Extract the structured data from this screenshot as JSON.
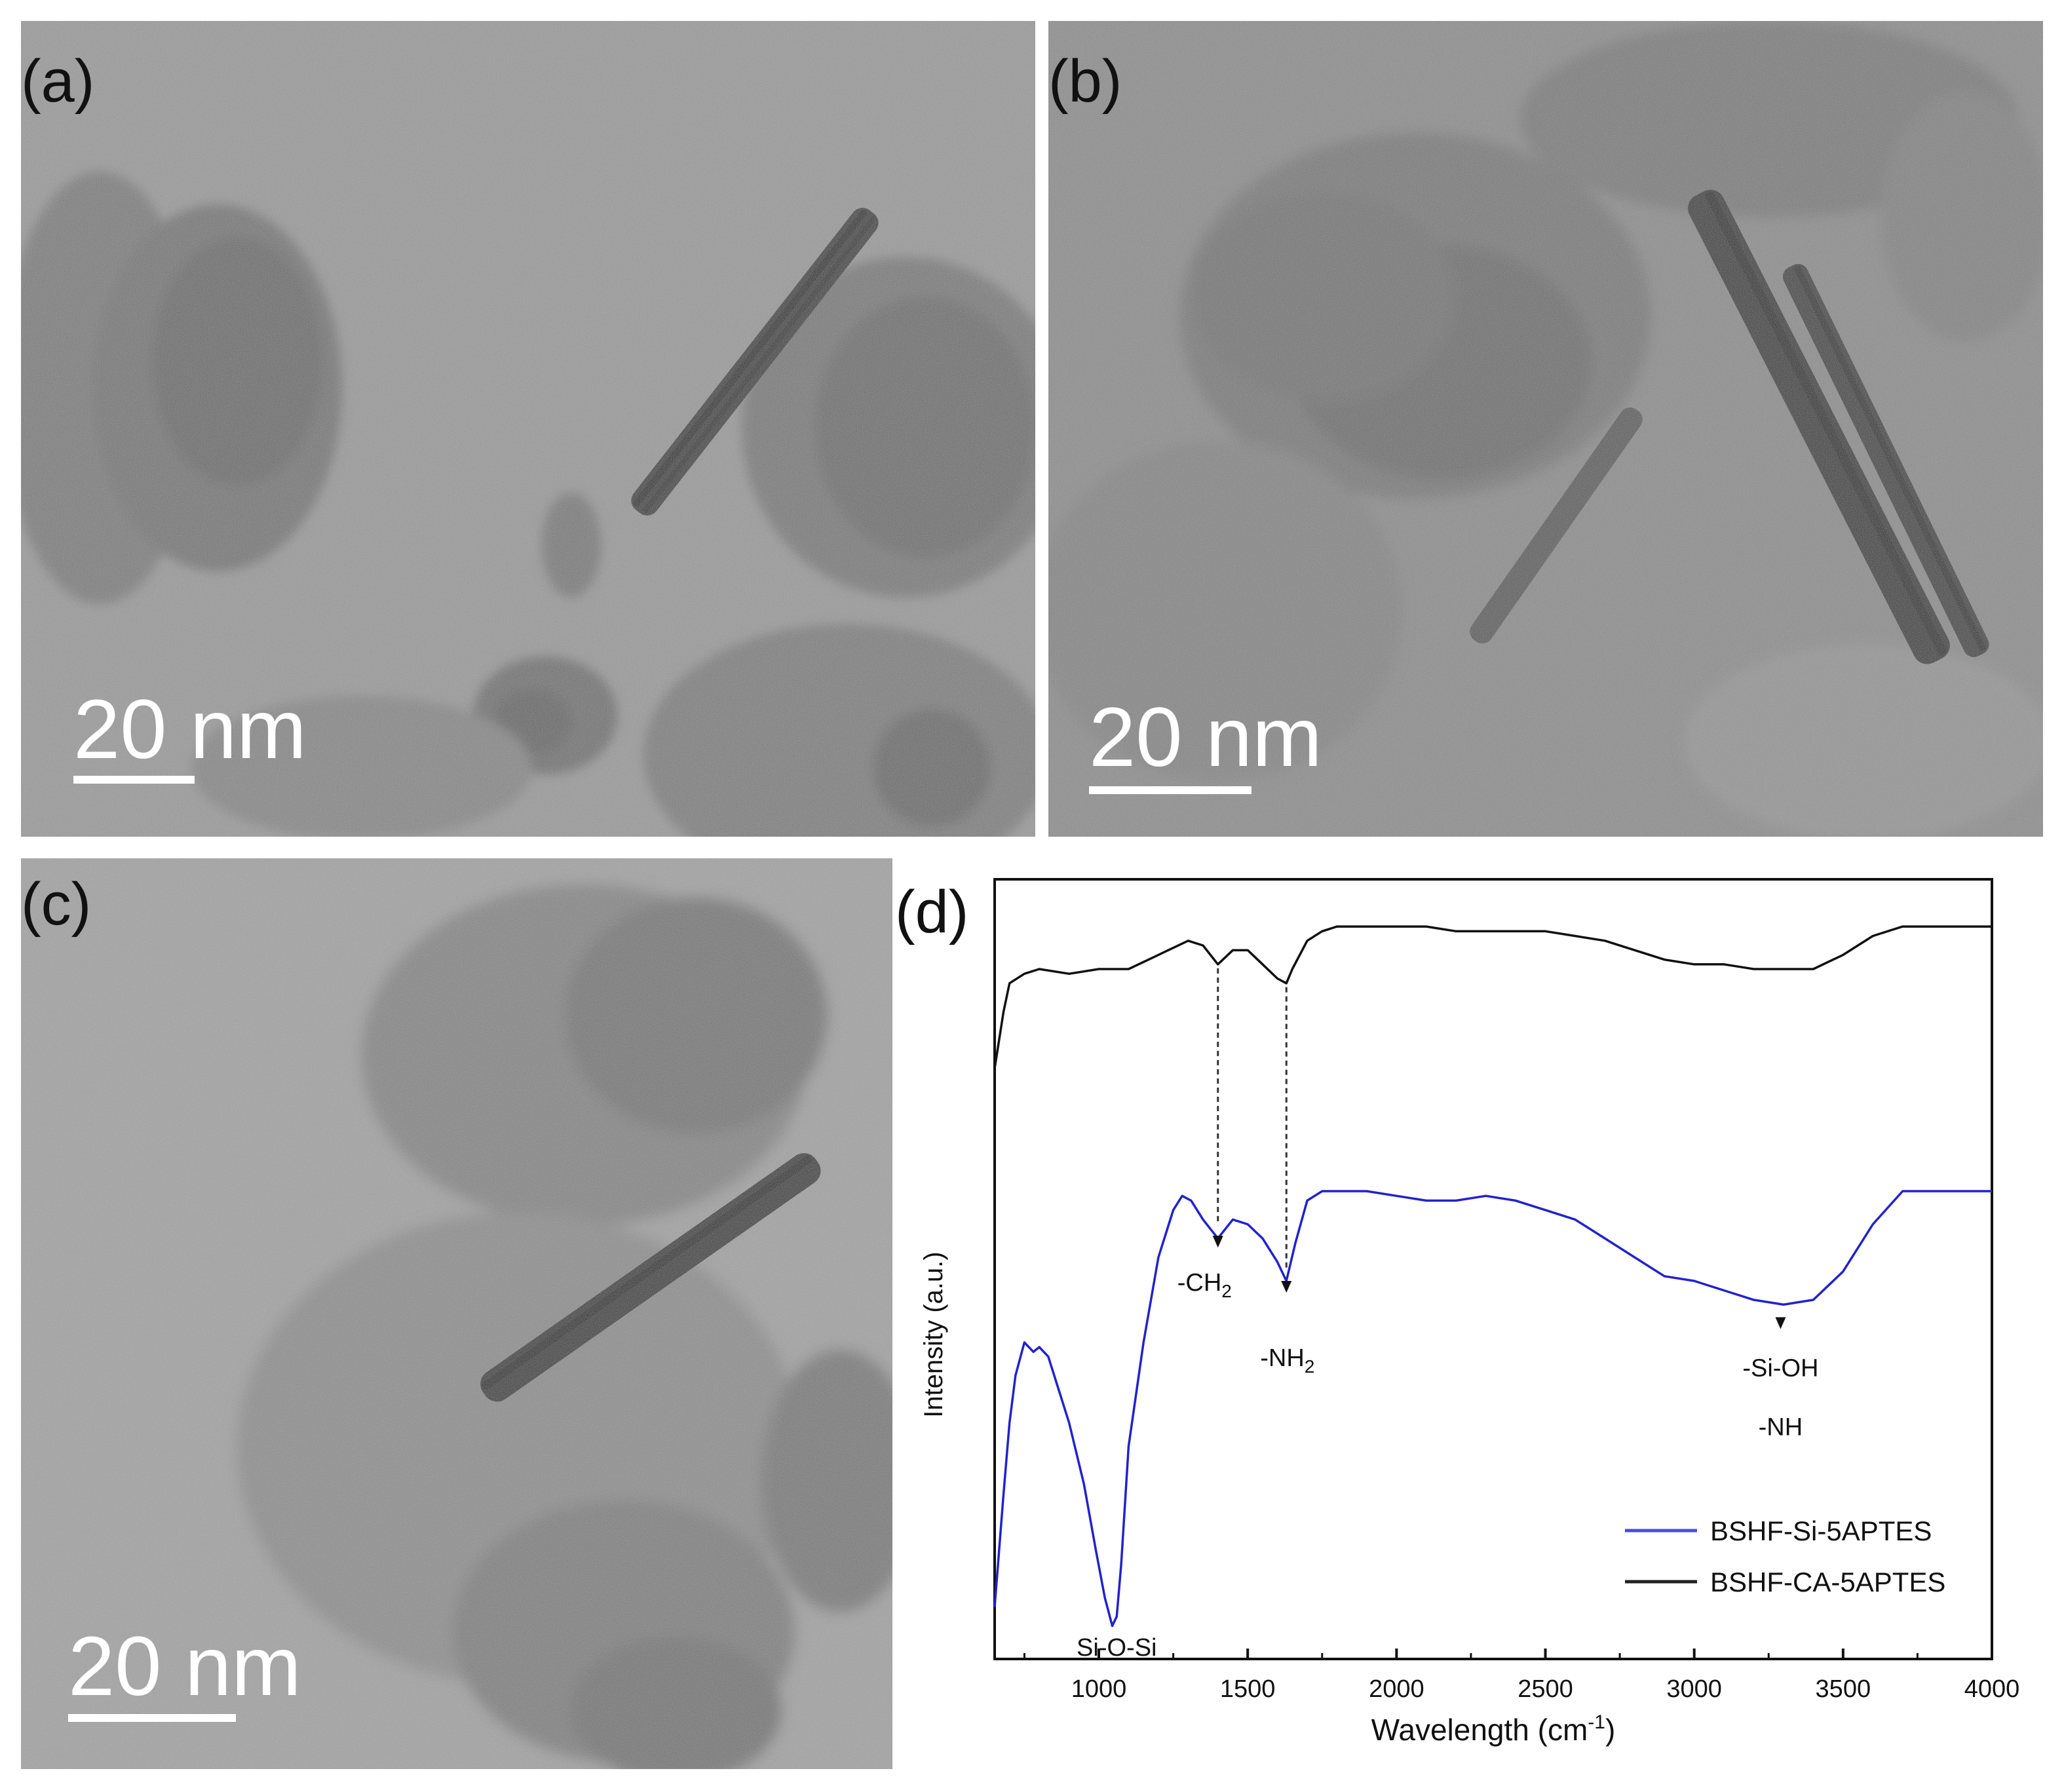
{
  "panels": {
    "a": {
      "label": "(a)",
      "scale": "20 nm"
    },
    "b": {
      "label": "(b)",
      "scale": "20 nm"
    },
    "c": {
      "label": "(c)",
      "scale": "20 nm"
    },
    "d": {
      "label": "(d)"
    }
  },
  "chart_data": {
    "type": "line",
    "xlabel": "Wavelength (cm⁻¹)",
    "ylabel": "Intensity (a.u.)",
    "xlim": [
      650,
      4000
    ],
    "xticks": [
      1000,
      1500,
      2000,
      2500,
      3000,
      3500,
      4000
    ],
    "yaxis_ticks": false,
    "legend_position": "bottom-right",
    "series": [
      {
        "name": "BSHF-Si-5APTES",
        "color": "#2222cc",
        "x": [
          650,
          680,
          700,
          720,
          750,
          780,
          800,
          830,
          850,
          900,
          950,
          990,
          1020,
          1045,
          1060,
          1075,
          1100,
          1150,
          1200,
          1250,
          1280,
          1310,
          1350,
          1400,
          1450,
          1500,
          1550,
          1600,
          1630,
          1660,
          1700,
          1750,
          1800,
          1900,
          2000,
          2100,
          2200,
          2300,
          2400,
          2500,
          2600,
          2700,
          2800,
          2900,
          3000,
          3100,
          3200,
          3300,
          3400,
          3500,
          3600,
          3700,
          3800,
          3900,
          4000
        ],
        "values": [
          6,
          30,
          45,
          55,
          62,
          60,
          61,
          59,
          55,
          45,
          32,
          18,
          8,
          2,
          4,
          15,
          40,
          62,
          80,
          90,
          93,
          92,
          88,
          84,
          88,
          87,
          84,
          79,
          75,
          83,
          92,
          94,
          94,
          94,
          93,
          92,
          92,
          93,
          92,
          90,
          88,
          84,
          80,
          76,
          75,
          73,
          71,
          70,
          71,
          77,
          87,
          94,
          94,
          94,
          94
        ]
      },
      {
        "name": "BSHF-CA-5APTES",
        "color": "#111111",
        "x": [
          650,
          680,
          700,
          750,
          800,
          900,
          1000,
          1100,
          1200,
          1300,
          1350,
          1400,
          1450,
          1500,
          1550,
          1600,
          1630,
          1650,
          1700,
          1750,
          1800,
          1900,
          2000,
          2100,
          2200,
          2300,
          2400,
          2500,
          2600,
          2700,
          2800,
          2900,
          3000,
          3100,
          3200,
          3300,
          3400,
          3500,
          3600,
          3700,
          3800,
          3900,
          4000
        ],
        "values": [
          120,
          132,
          138,
          140,
          141,
          140,
          141,
          141,
          144,
          147,
          146,
          142,
          145,
          145,
          142,
          139,
          138,
          141,
          147,
          149,
          150,
          150,
          150,
          150,
          149,
          149,
          149,
          149,
          148,
          147,
          145,
          143,
          142,
          142,
          141,
          141,
          141,
          144,
          148,
          150,
          150,
          150,
          150
        ]
      }
    ],
    "annotations": [
      "-CH2",
      "-NH2",
      "-Si-OH",
      "-NH",
      "Si-O-Si"
    ]
  },
  "annotation_display": {
    "ch2": "-CH",
    "ch2_sub": "2",
    "nh2": "-NH",
    "nh2_sub": "2",
    "sioh": "-Si-OH",
    "nh": "-NH",
    "siosi": "Si-O-Si"
  },
  "axis_display": {
    "xlabel_main": "Wavelength (cm",
    "xlabel_sup": "-1",
    "xlabel_end": ")",
    "ylabel": "Intensity (a.u.)"
  },
  "legend": [
    {
      "label": "BSHF-Si-5APTES",
      "color": "#4a4ae8"
    },
    {
      "label": "BSHF-CA-5APTES",
      "color": "#222222"
    }
  ]
}
